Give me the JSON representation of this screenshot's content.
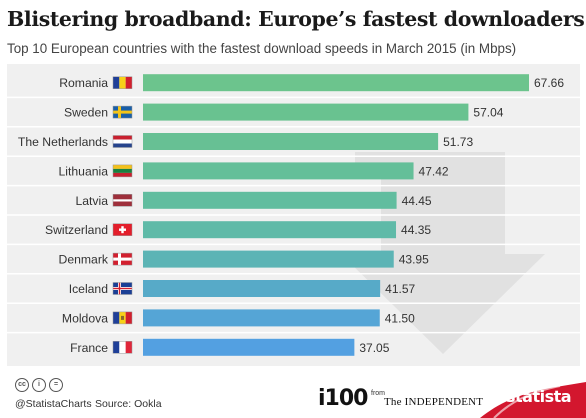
{
  "title": "Blistering broadband: Europe’s fastest downloaders",
  "subtitle": "Top 10 European countries with the fastest download speeds in March 2015 (in Mbps)",
  "chart_data": {
    "type": "bar",
    "orientation": "horizontal",
    "title": "Blistering broadband: Europe’s fastest downloaders",
    "subtitle": "Top 10 European countries with the fastest download speeds in March 2015 (in Mbps)",
    "categories": [
      "Romania",
      "Sweden",
      "The Netherlands",
      "Lithuania",
      "Latvia",
      "Switzerland",
      "Denmark",
      "Iceland",
      "Moldova",
      "France"
    ],
    "values": [
      67.66,
      57.04,
      51.73,
      47.42,
      44.45,
      44.35,
      43.95,
      41.57,
      41.5,
      37.05
    ],
    "value_labels": [
      "67.66",
      "57.04",
      "51.73",
      "47.42",
      "44.45",
      "44.35",
      "43.95",
      "41.57",
      "41.50",
      "37.05"
    ],
    "xlim": [
      0,
      70
    ],
    "grid": false,
    "bar_colors": [
      "#6cc48d",
      "#69c290",
      "#67c094",
      "#64bf99",
      "#61bd9f",
      "#5fbaa8",
      "#5cb4b5",
      "#57aac8",
      "#55a5d6",
      "#53a0e1"
    ],
    "flags": [
      "flag-romania",
      "flag-sweden",
      "flag-netherlands",
      "flag-lithuania",
      "flag-latvia",
      "flag-switzerland",
      "flag-denmark",
      "flag-iceland",
      "flag-moldova",
      "flag-france"
    ]
  },
  "footer": {
    "handle": "@StatistaCharts",
    "source": "Source: Ookla",
    "i100": "i100",
    "from": "from",
    "independent": "The INDEPENDENT",
    "statista": "statista"
  }
}
